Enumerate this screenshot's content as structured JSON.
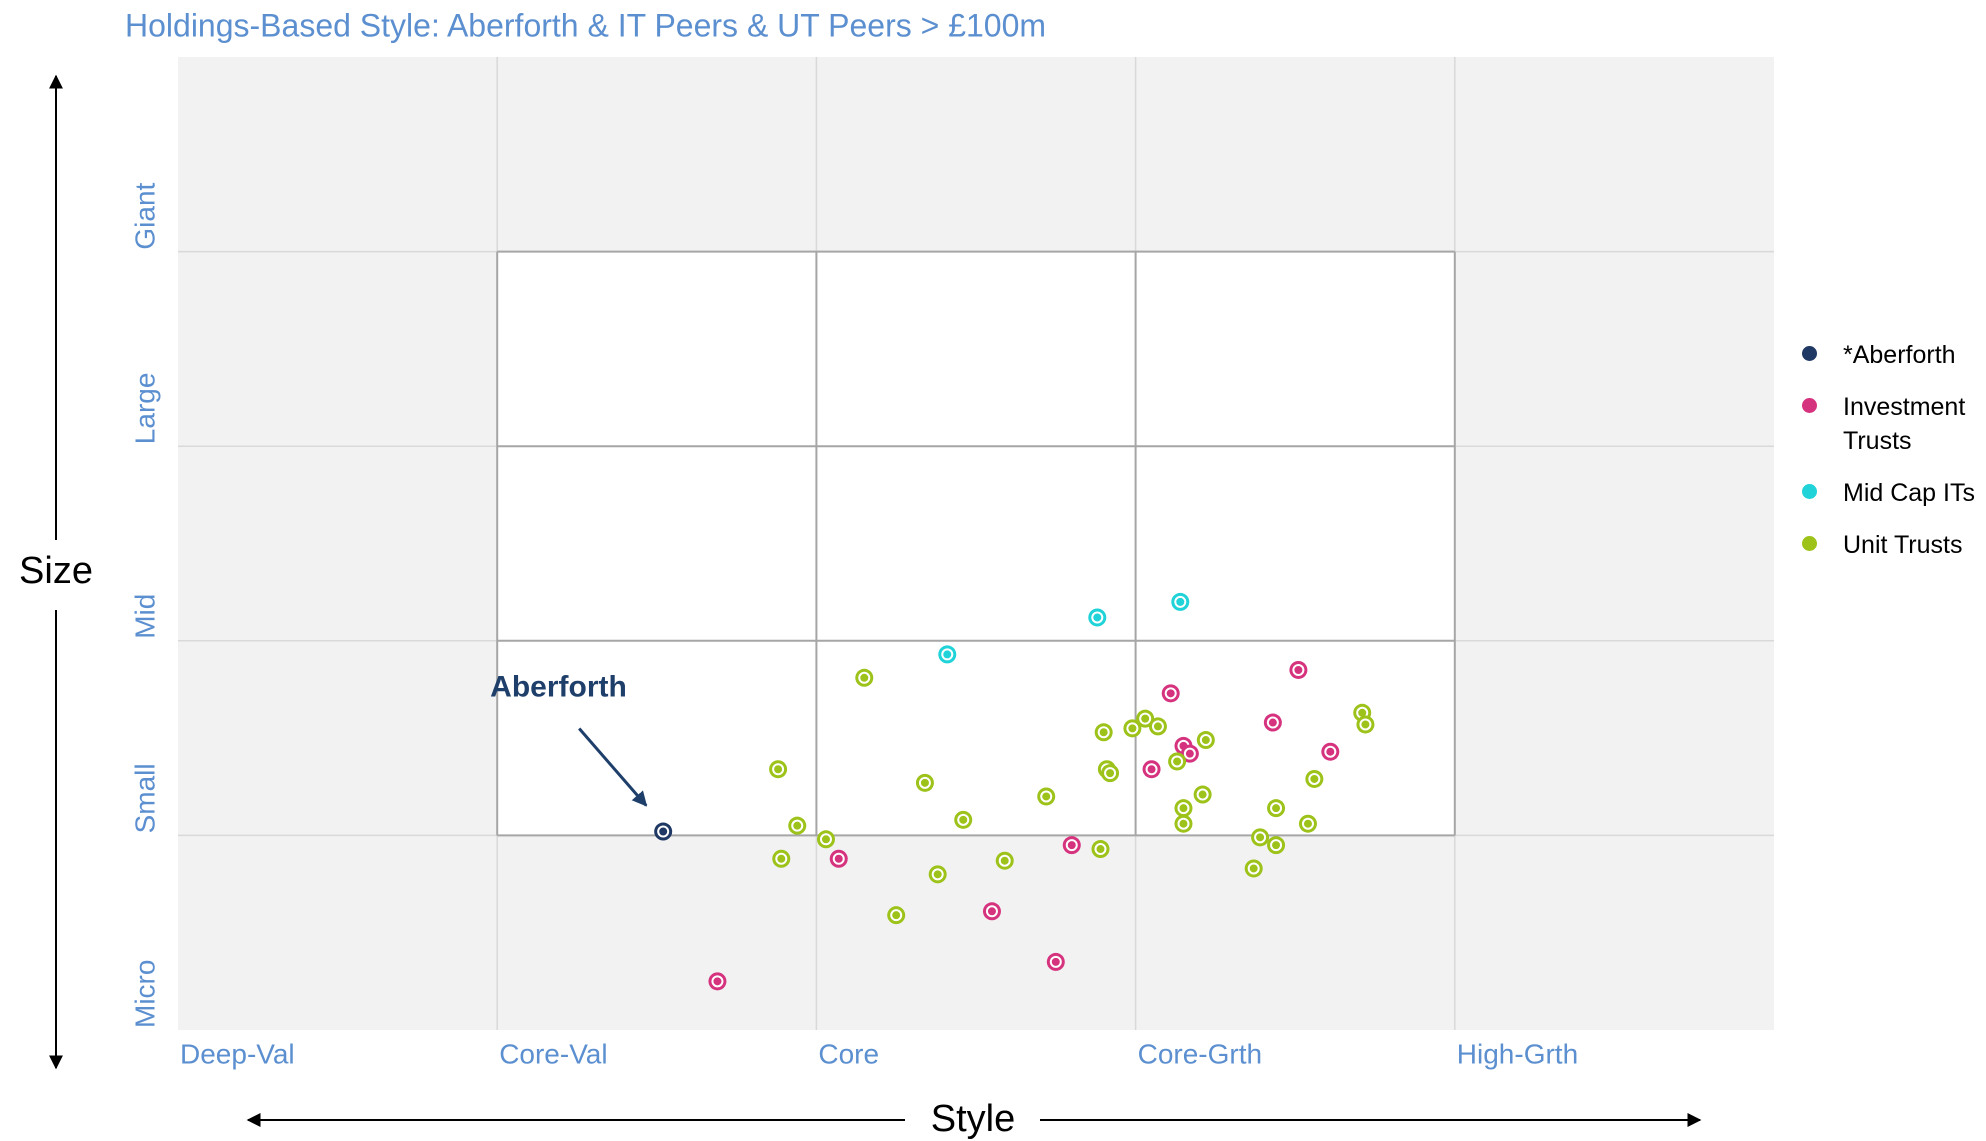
{
  "chart_data": {
    "type": "scatter",
    "title": "Holdings-Based Style: Aberforth & IT Peers & UT Peers > £100m",
    "x_label": "Style",
    "y_label": "Size",
    "xlim": [
      0,
      5
    ],
    "ylim": [
      0,
      5
    ],
    "xticks": [
      {
        "value": 0,
        "label": "Deep-Val"
      },
      {
        "value": 1,
        "label": "Core-Val"
      },
      {
        "value": 2,
        "label": "Core"
      },
      {
        "value": 3,
        "label": "Core-Grth"
      },
      {
        "value": 4,
        "label": "High-Grth"
      }
    ],
    "yticks": [
      {
        "value": 0,
        "label": "Micro"
      },
      {
        "value": 1,
        "label": "Small"
      },
      {
        "value": 2,
        "label": "Mid"
      },
      {
        "value": 3,
        "label": "Large"
      },
      {
        "value": 4,
        "label": "Giant"
      }
    ],
    "grid": true,
    "legend": "right",
    "annotation": "Aberforth",
    "series": [
      {
        "name": "*Aberforth",
        "color": "#1f3864",
        "x": [
          1.52
        ],
        "values": [
          1.02
        ]
      },
      {
        "name": "Investment Trusts",
        "color": "#d6337f",
        "x": [
          1.69,
          2.07,
          2.55,
          2.75,
          2.8,
          3.05,
          3.11,
          3.15,
          3.17,
          3.43,
          3.51,
          3.61
        ],
        "values": [
          0.25,
          0.88,
          0.61,
          0.35,
          0.95,
          1.34,
          1.73,
          1.46,
          1.42,
          1.58,
          1.85,
          1.43
        ]
      },
      {
        "name": "Mid Cap ITs",
        "color": "#1fd3d8",
        "x": [
          2.41,
          2.88,
          3.14
        ],
        "values": [
          1.93,
          2.12,
          2.2
        ]
      },
      {
        "name": "Unit Trusts",
        "color": "#9dc31a",
        "x": [
          1.88,
          1.89,
          1.94,
          2.03,
          2.15,
          2.25,
          2.34,
          2.38,
          2.46,
          2.59,
          2.72,
          2.89,
          2.9,
          2.91,
          2.92,
          2.99,
          3.03,
          3.07,
          3.13,
          3.15,
          3.15,
          3.21,
          3.22,
          3.37,
          3.39,
          3.44,
          3.44,
          3.54,
          3.56,
          3.71,
          3.72
        ],
        "values": [
          1.34,
          0.88,
          1.05,
          0.98,
          1.81,
          0.59,
          1.27,
          0.8,
          1.08,
          0.87,
          1.2,
          0.93,
          1.53,
          1.34,
          1.32,
          1.55,
          1.6,
          1.56,
          1.38,
          1.06,
          1.14,
          1.21,
          1.49,
          0.83,
          0.99,
          1.14,
          0.95,
          1.06,
          1.29,
          1.63,
          1.57
        ]
      }
    ]
  }
}
